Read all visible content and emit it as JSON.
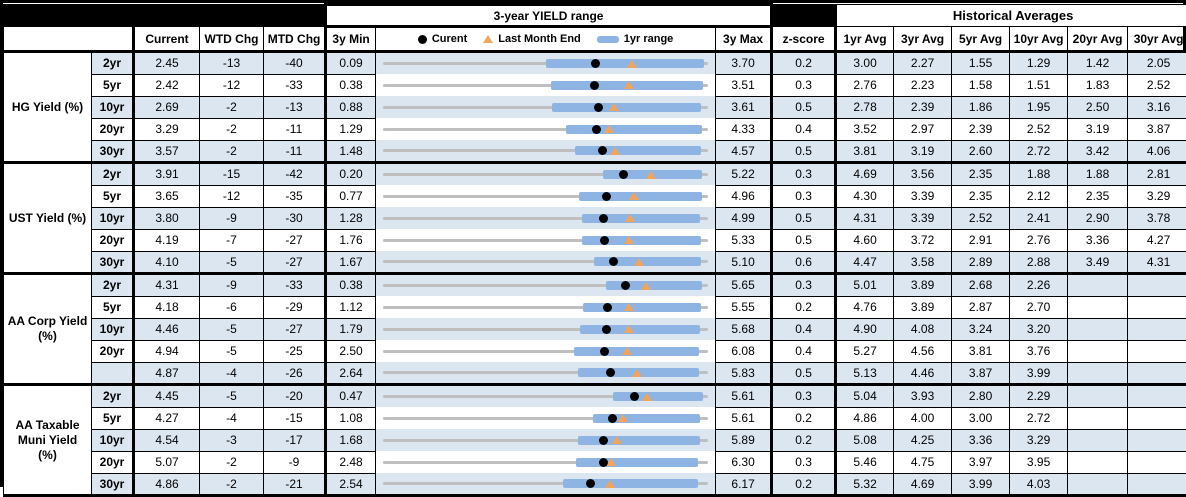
{
  "header": {
    "chart_title": "3-year YIELD range",
    "historical_title": "Historical Averages",
    "col_current": "Current",
    "col_wtd": "WTD Chg",
    "col_mtd": "MTD Chg",
    "col_min": "3y Min",
    "col_max": "3y Max",
    "col_z": "z-score",
    "avg_cols": [
      "1yr Avg",
      "3yr Avg",
      "5yr Avg",
      "10yr Avg",
      "20yr Avg",
      "30yr Avg"
    ],
    "legend_current": "Curent",
    "legend_last_month": "Last Month End",
    "legend_range": "1yr range"
  },
  "colors": {
    "row_blue": "#DCE6F1",
    "bar_blue": "#8DB4E2",
    "track_gray": "#BFBFBF",
    "tri_orange": "#F2A45C",
    "dot_black": "#000000"
  },
  "chart_data": {
    "type": "table",
    "title": "3-year YIELD range",
    "columns": [
      "Current",
      "WTD Chg",
      "MTD Chg",
      "3y Min",
      "3y Max",
      "z-score",
      "1yr Avg",
      "3yr Avg",
      "5yr Avg",
      "10yr Avg",
      "20yr Avg",
      "30yr Avg"
    ],
    "sections": [
      {
        "label": "HG Yield (%)",
        "rows": [
          {
            "tenor": "2yr",
            "current": "2.45",
            "wtd": "-13",
            "mtd": "-40",
            "min3y": "0.09",
            "max3y": "3.70",
            "z": "0.2",
            "avgs": [
              "3.00",
              "2.27",
              "1.55",
              "1.29",
              "1.42",
              "2.05"
            ],
            "range": {
              "min": 0.09,
              "max": 3.7,
              "current": 2.45,
              "last_month_end": 2.85,
              "yr1_low": 1.9,
              "yr1_high": 3.65
            }
          },
          {
            "tenor": "5yr",
            "current": "2.42",
            "wtd": "-12",
            "mtd": "-33",
            "min3y": "0.38",
            "max3y": "3.51",
            "z": "0.3",
            "avgs": [
              "2.76",
              "2.23",
              "1.58",
              "1.51",
              "1.83",
              "2.52"
            ],
            "range": {
              "min": 0.38,
              "max": 3.51,
              "current": 2.42,
              "last_month_end": 2.75,
              "yr1_low": 2.0,
              "yr1_high": 3.46
            }
          },
          {
            "tenor": "10yr",
            "current": "2.69",
            "wtd": "-2",
            "mtd": "-13",
            "min3y": "0.88",
            "max3y": "3.61",
            "z": "0.5",
            "avgs": [
              "2.78",
              "2.39",
              "1.86",
              "1.95",
              "2.50",
              "3.16"
            ],
            "range": {
              "min": 0.88,
              "max": 3.61,
              "current": 2.69,
              "last_month_end": 2.82,
              "yr1_low": 2.3,
              "yr1_high": 3.55
            }
          },
          {
            "tenor": "20yr",
            "current": "3.29",
            "wtd": "-2",
            "mtd": "-11",
            "min3y": "1.29",
            "max3y": "4.33",
            "z": "0.4",
            "avgs": [
              "3.52",
              "2.97",
              "2.39",
              "2.52",
              "3.19",
              "3.87"
            ],
            "range": {
              "min": 1.29,
              "max": 4.33,
              "current": 3.29,
              "last_month_end": 3.4,
              "yr1_low": 3.0,
              "yr1_high": 4.27
            }
          },
          {
            "tenor": "30yr",
            "current": "3.57",
            "wtd": "-2",
            "mtd": "-11",
            "min3y": "1.48",
            "max3y": "4.57",
            "z": "0.5",
            "avgs": [
              "3.81",
              "3.19",
              "2.60",
              "2.72",
              "3.42",
              "4.06"
            ],
            "range": {
              "min": 1.48,
              "max": 4.57,
              "current": 3.57,
              "last_month_end": 3.68,
              "yr1_low": 3.3,
              "yr1_high": 4.5
            }
          }
        ]
      },
      {
        "label": "UST Yield (%)",
        "rows": [
          {
            "tenor": "2yr",
            "current": "3.91",
            "wtd": "-15",
            "mtd": "-42",
            "min3y": "0.20",
            "max3y": "5.22",
            "z": "0.3",
            "avgs": [
              "4.69",
              "3.56",
              "2.35",
              "1.88",
              "1.88",
              "2.81"
            ],
            "range": {
              "min": 0.2,
              "max": 5.22,
              "current": 3.91,
              "last_month_end": 4.33,
              "yr1_low": 3.6,
              "yr1_high": 5.12
            }
          },
          {
            "tenor": "5yr",
            "current": "3.65",
            "wtd": "-12",
            "mtd": "-35",
            "min3y": "0.77",
            "max3y": "4.96",
            "z": "0.3",
            "avgs": [
              "4.30",
              "3.39",
              "2.35",
              "2.12",
              "2.35",
              "3.29"
            ],
            "range": {
              "min": 0.77,
              "max": 4.96,
              "current": 3.65,
              "last_month_end": 4.0,
              "yr1_low": 3.3,
              "yr1_high": 4.88
            }
          },
          {
            "tenor": "10yr",
            "current": "3.80",
            "wtd": "-9",
            "mtd": "-30",
            "min3y": "1.28",
            "max3y": "4.99",
            "z": "0.5",
            "avgs": [
              "4.31",
              "3.39",
              "2.52",
              "2.41",
              "2.90",
              "3.78"
            ],
            "range": {
              "min": 1.28,
              "max": 4.99,
              "current": 3.8,
              "last_month_end": 4.1,
              "yr1_low": 3.55,
              "yr1_high": 4.9
            }
          },
          {
            "tenor": "20yr",
            "current": "4.19",
            "wtd": "-7",
            "mtd": "-27",
            "min3y": "1.76",
            "max3y": "5.33",
            "z": "0.5",
            "avgs": [
              "4.60",
              "3.72",
              "2.91",
              "2.76",
              "3.36",
              "4.27"
            ],
            "range": {
              "min": 1.76,
              "max": 5.33,
              "current": 4.19,
              "last_month_end": 4.46,
              "yr1_low": 3.95,
              "yr1_high": 5.25
            }
          },
          {
            "tenor": "30yr",
            "current": "4.10",
            "wtd": "-5",
            "mtd": "-27",
            "min3y": "1.67",
            "max3y": "5.10",
            "z": "0.6",
            "avgs": [
              "4.47",
              "3.58",
              "2.89",
              "2.88",
              "3.49",
              "4.31"
            ],
            "range": {
              "min": 1.67,
              "max": 5.1,
              "current": 4.1,
              "last_month_end": 4.37,
              "yr1_low": 3.9,
              "yr1_high": 5.02
            }
          }
        ]
      },
      {
        "label": "AA Corp Yield (%)",
        "rows": [
          {
            "tenor": "2yr",
            "current": "4.31",
            "wtd": "-9",
            "mtd": "-33",
            "min3y": "0.38",
            "max3y": "5.65",
            "z": "0.3",
            "avgs": [
              "5.01",
              "3.89",
              "2.68",
              "2.26",
              "",
              ""
            ],
            "range": {
              "min": 0.38,
              "max": 5.65,
              "current": 4.31,
              "last_month_end": 4.64,
              "yr1_low": 4.0,
              "yr1_high": 5.55
            }
          },
          {
            "tenor": "5yr",
            "current": "4.18",
            "wtd": "-6",
            "mtd": "-29",
            "min3y": "1.12",
            "max3y": "5.55",
            "z": "0.2",
            "avgs": [
              "4.76",
              "3.89",
              "2.87",
              "2.70",
              "",
              ""
            ],
            "range": {
              "min": 1.12,
              "max": 5.55,
              "current": 4.18,
              "last_month_end": 4.47,
              "yr1_low": 3.85,
              "yr1_high": 5.45
            }
          },
          {
            "tenor": "10yr",
            "current": "4.46",
            "wtd": "-5",
            "mtd": "-27",
            "min3y": "1.79",
            "max3y": "5.68",
            "z": "0.4",
            "avgs": [
              "4.90",
              "4.08",
              "3.24",
              "3.20",
              "",
              ""
            ],
            "range": {
              "min": 1.79,
              "max": 5.68,
              "current": 4.46,
              "last_month_end": 4.73,
              "yr1_low": 4.15,
              "yr1_high": 5.58
            }
          },
          {
            "tenor": "20yr",
            "current": "4.94",
            "wtd": "-5",
            "mtd": "-25",
            "min3y": "2.50",
            "max3y": "6.08",
            "z": "0.4",
            "avgs": [
              "5.27",
              "4.56",
              "3.81",
              "3.76",
              "",
              ""
            ],
            "range": {
              "min": 2.5,
              "max": 6.08,
              "current": 4.94,
              "last_month_end": 5.19,
              "yr1_low": 4.6,
              "yr1_high": 5.98
            }
          },
          {
            "tenor": "",
            "current": "4.87",
            "wtd": "-4",
            "mtd": "-26",
            "min3y": "2.64",
            "max3y": "5.83",
            "z": "0.5",
            "avgs": [
              "5.13",
              "4.46",
              "3.87",
              "3.99",
              "",
              ""
            ],
            "range": {
              "min": 2.64,
              "max": 5.83,
              "current": 4.87,
              "last_month_end": 5.13,
              "yr1_low": 4.55,
              "yr1_high": 5.74
            }
          }
        ]
      },
      {
        "label": "AA Taxable Muni Yield (%)",
        "rows": [
          {
            "tenor": "2yr",
            "current": "4.45",
            "wtd": "-5",
            "mtd": "-20",
            "min3y": "0.47",
            "max3y": "5.61",
            "z": "0.3",
            "avgs": [
              "5.04",
              "3.93",
              "2.80",
              "2.29",
              "",
              ""
            ],
            "range": {
              "min": 0.47,
              "max": 5.61,
              "current": 4.45,
              "last_month_end": 4.65,
              "yr1_low": 4.1,
              "yr1_high": 5.52
            }
          },
          {
            "tenor": "5yr",
            "current": "4.27",
            "wtd": "-4",
            "mtd": "-15",
            "min3y": "1.08",
            "max3y": "5.61",
            "z": "0.2",
            "avgs": [
              "4.86",
              "4.00",
              "3.00",
              "2.72",
              "",
              ""
            ],
            "range": {
              "min": 1.08,
              "max": 5.61,
              "current": 4.27,
              "last_month_end": 4.42,
              "yr1_low": 4.0,
              "yr1_high": 5.5
            }
          },
          {
            "tenor": "10yr",
            "current": "4.54",
            "wtd": "-3",
            "mtd": "-17",
            "min3y": "1.68",
            "max3y": "5.89",
            "z": "0.2",
            "avgs": [
              "5.08",
              "4.25",
              "3.36",
              "3.29",
              "",
              ""
            ],
            "range": {
              "min": 1.68,
              "max": 5.89,
              "current": 4.54,
              "last_month_end": 4.71,
              "yr1_low": 4.2,
              "yr1_high": 5.78
            }
          },
          {
            "tenor": "20yr",
            "current": "5.07",
            "wtd": "-2",
            "mtd": "-9",
            "min3y": "2.48",
            "max3y": "6.30",
            "z": "0.3",
            "avgs": [
              "5.46",
              "4.75",
              "3.97",
              "3.95",
              "",
              ""
            ],
            "range": {
              "min": 2.48,
              "max": 6.3,
              "current": 5.07,
              "last_month_end": 5.16,
              "yr1_low": 4.75,
              "yr1_high": 6.18
            }
          },
          {
            "tenor": "30yr",
            "current": "4.86",
            "wtd": "-2",
            "mtd": "-21",
            "min3y": "2.54",
            "max3y": "6.17",
            "z": "0.2",
            "avgs": [
              "5.32",
              "4.69",
              "3.99",
              "4.03",
              "",
              ""
            ],
            "range": {
              "min": 2.54,
              "max": 6.17,
              "current": 4.86,
              "last_month_end": 5.07,
              "yr1_low": 4.55,
              "yr1_high": 6.05
            }
          }
        ]
      }
    ]
  }
}
